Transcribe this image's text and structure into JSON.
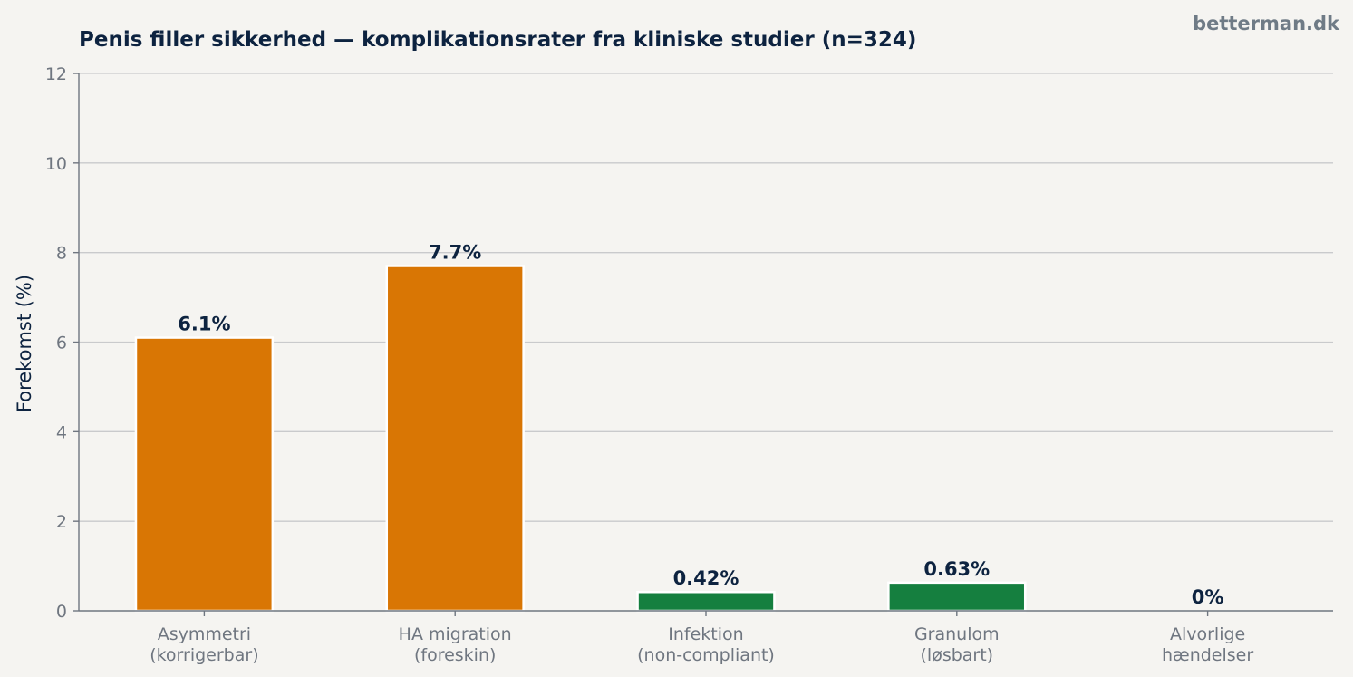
{
  "brand": "betterman.dk",
  "chart_data": {
    "type": "bar",
    "title": "Penis filler sikkerhed — komplikationsrater fra kliniske studier (n=324)",
    "xlabel": "",
    "ylabel": "Forekomst (%)",
    "ylim": [
      0,
      12
    ],
    "yticks": [
      0,
      2,
      4,
      6,
      8,
      10,
      12
    ],
    "grid": true,
    "categories": [
      [
        "Asymmetri",
        "(korrigerbar)"
      ],
      [
        "HA migration",
        "(foreskin)"
      ],
      [
        "Infektion",
        "(non-compliant)"
      ],
      [
        "Granulom",
        "(løsbart)"
      ],
      [
        "Alvorlige",
        "hændelser"
      ]
    ],
    "values": [
      6.1,
      7.7,
      0.42,
      0.63,
      0
    ],
    "value_labels": [
      "6.1%",
      "7.7%",
      "0.42%",
      "0.63%",
      "0%"
    ],
    "colors": [
      "#d97604",
      "#d97604",
      "#157f3f",
      "#157f3f",
      "#157f3f"
    ]
  }
}
